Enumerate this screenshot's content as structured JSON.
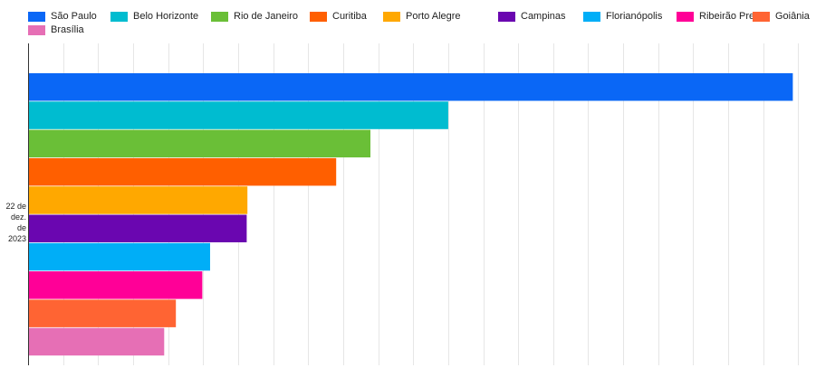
{
  "chart_data": {
    "type": "bar",
    "orientation": "horizontal",
    "title": "",
    "xlabel": "",
    "ylabel": "",
    "categories": [
      "22 de dez. de 2023"
    ],
    "category_label_lines": [
      "22 de",
      "dez. de",
      "2023"
    ],
    "xlim": [
      0,
      1000
    ],
    "x_gridlines": [
      0,
      45,
      90,
      135,
      180,
      225,
      270,
      315,
      360,
      405,
      450,
      495,
      540,
      585,
      630,
      675,
      720,
      765,
      810,
      855,
      900,
      945,
      990
    ],
    "grid": true,
    "legend_position": "top",
    "series": [
      {
        "name": "São Paulo",
        "values": [
          983
        ],
        "color": "#0a67f6"
      },
      {
        "name": "Belo Horizonte",
        "values": [
          540
        ],
        "color": "#00bcd0"
      },
      {
        "name": "Rio de Janeiro",
        "values": [
          440
        ],
        "color": "#6abf37"
      },
      {
        "name": "Curitiba",
        "values": [
          396
        ],
        "color": "#ff5f00"
      },
      {
        "name": "Porto Alegre",
        "values": [
          282
        ],
        "color": "#ffa800"
      },
      {
        "name": "Campinas",
        "values": [
          281
        ],
        "color": "#6a06b0"
      },
      {
        "name": "Florianópolis",
        "values": [
          234
        ],
        "color": "#00aef7"
      },
      {
        "name": "Ribeirão Preto",
        "values": [
          224
        ],
        "color": "#ff0097"
      },
      {
        "name": "Goiânia",
        "values": [
          190
        ],
        "color": "#ff6433"
      },
      {
        "name": "Brasília",
        "values": [
          175
        ],
        "color": "#e66fb5"
      }
    ]
  }
}
